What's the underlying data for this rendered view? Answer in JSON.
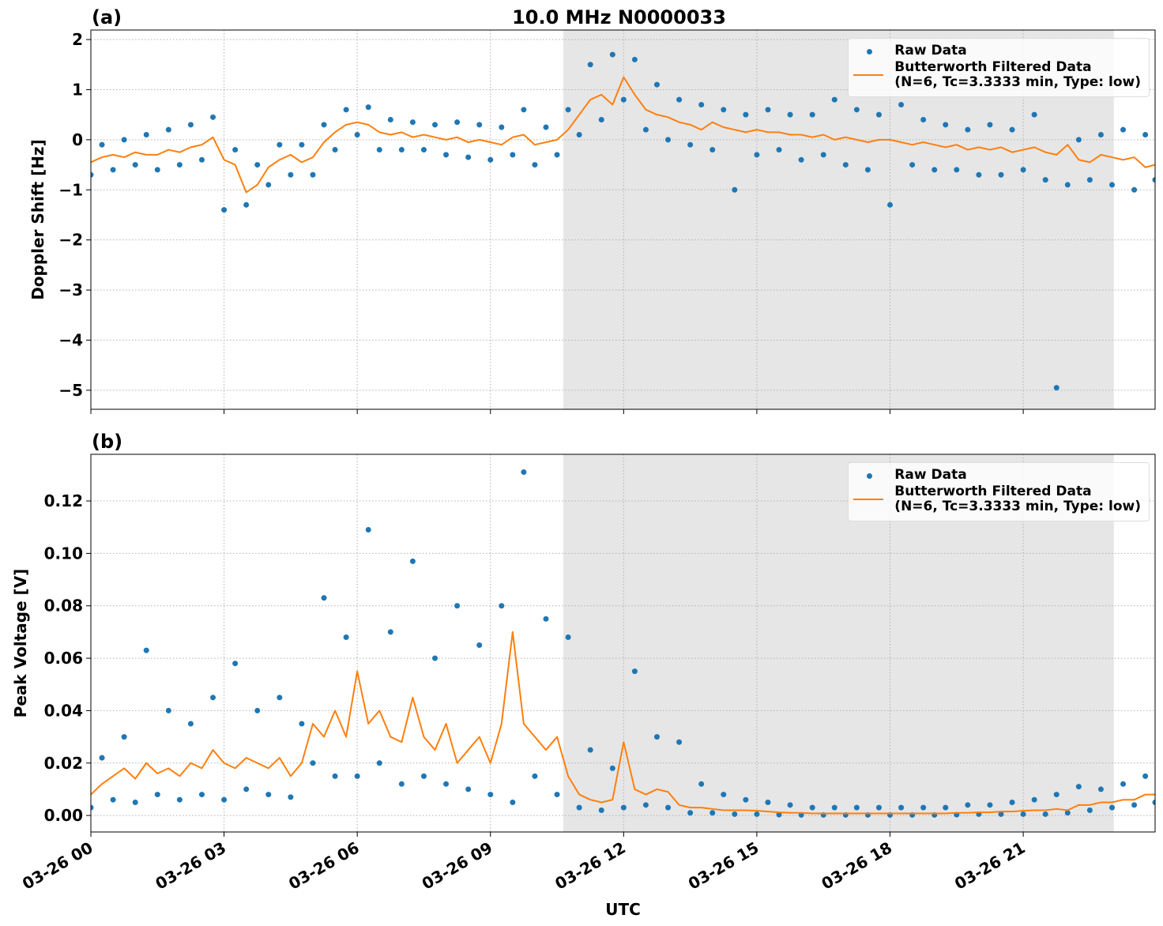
{
  "chart_data": [
    {
      "type": "line",
      "title": "10.0 MHz N0000033",
      "panel_label": "(a)",
      "y_label": "Doppler Shift [Hz]",
      "xlim": [
        0,
        23.97
      ],
      "xticks": [
        0,
        3,
        6,
        9,
        12,
        15,
        18,
        21
      ],
      "ylim": [
        -5.38,
        2.19
      ],
      "yticks": [
        {
          "value": -5,
          "label": "−5"
        },
        {
          "value": -4,
          "label": "−4"
        },
        {
          "value": -3,
          "label": "−3"
        },
        {
          "value": -2,
          "label": "−2"
        },
        {
          "value": -1,
          "label": "−1"
        },
        0,
        1,
        2
      ],
      "grid": true,
      "legend": "upper right",
      "shaded_xrange": [
        10.64,
        23.04
      ],
      "shade_color": "#e6e6e6",
      "x": [
        0,
        0.25,
        0.5,
        0.75,
        1,
        1.25,
        1.5,
        1.75,
        2,
        2.25,
        2.5,
        2.75,
        3,
        3.25,
        3.5,
        3.75,
        4,
        4.25,
        4.5,
        4.75,
        5,
        5.25,
        5.5,
        5.75,
        6,
        6.25,
        6.5,
        6.75,
        7,
        7.25,
        7.5,
        7.75,
        8,
        8.25,
        8.5,
        8.75,
        9,
        9.25,
        9.5,
        9.75,
        10,
        10.25,
        10.5,
        10.75,
        11,
        11.25,
        11.5,
        11.75,
        12,
        12.25,
        12.5,
        12.75,
        13,
        13.25,
        13.5,
        13.75,
        14,
        14.25,
        14.5,
        14.75,
        15,
        15.25,
        15.5,
        15.75,
        16,
        16.25,
        16.5,
        16.75,
        17,
        17.25,
        17.5,
        17.75,
        18,
        18.25,
        18.5,
        18.75,
        19,
        19.25,
        19.5,
        19.75,
        20,
        20.25,
        20.5,
        20.75,
        21,
        21.25,
        21.5,
        21.75,
        22,
        22.25,
        22.5,
        22.75,
        23,
        23.25,
        23.5,
        23.75,
        23.97
      ],
      "series": [
        {
          "name": "Raw Data",
          "type": "scatter",
          "color": "#1f77b4",
          "values": [
            -0.7,
            -0.1,
            -0.6,
            0.0,
            -0.5,
            0.1,
            -0.6,
            0.2,
            -0.5,
            0.3,
            -0.4,
            0.45,
            -1.4,
            -0.2,
            -1.3,
            -0.5,
            -0.9,
            -0.1,
            -0.7,
            -0.1,
            -0.7,
            0.3,
            -0.2,
            0.6,
            0.1,
            0.65,
            -0.2,
            0.4,
            -0.2,
            0.35,
            -0.2,
            0.3,
            -0.3,
            0.35,
            -0.35,
            0.3,
            -0.4,
            0.25,
            -0.3,
            0.6,
            -0.5,
            0.25,
            -0.3,
            0.6,
            0.1,
            1.5,
            0.4,
            1.7,
            0.8,
            1.6,
            0.2,
            1.1,
            0.0,
            0.8,
            -0.1,
            0.7,
            -0.2,
            0.6,
            -1.0,
            0.5,
            -0.3,
            0.6,
            -0.2,
            0.5,
            -0.4,
            0.5,
            -0.3,
            0.8,
            -0.5,
            0.6,
            -0.6,
            0.5,
            -1.3,
            0.7,
            -0.5,
            0.4,
            -0.6,
            0.3,
            -0.6,
            0.2,
            -0.7,
            0.3,
            -0.7,
            0.2,
            -0.6,
            0.5,
            -0.8,
            -4.95,
            -0.9,
            0.0,
            -0.8,
            0.1,
            -0.9,
            0.2,
            -1.0,
            0.1,
            -0.8
          ]
        },
        {
          "name": "Butterworth Filtered Data\n(N=6, Tc=3.3333 min, Type: low)",
          "type": "line",
          "color": "#ff7f0e",
          "values": [
            -0.45,
            -0.35,
            -0.3,
            -0.35,
            -0.25,
            -0.3,
            -0.3,
            -0.2,
            -0.25,
            -0.15,
            -0.1,
            0.05,
            -0.4,
            -0.5,
            -1.05,
            -0.9,
            -0.55,
            -0.4,
            -0.3,
            -0.45,
            -0.35,
            -0.05,
            0.15,
            0.3,
            0.35,
            0.3,
            0.15,
            0.1,
            0.15,
            0.05,
            0.1,
            0.05,
            0.0,
            0.05,
            -0.05,
            0.0,
            -0.05,
            -0.1,
            0.05,
            0.1,
            -0.1,
            -0.05,
            0.0,
            0.2,
            0.5,
            0.8,
            0.9,
            0.7,
            1.25,
            0.9,
            0.6,
            0.5,
            0.45,
            0.35,
            0.3,
            0.2,
            0.35,
            0.25,
            0.2,
            0.15,
            0.2,
            0.15,
            0.15,
            0.1,
            0.1,
            0.05,
            0.1,
            0.0,
            0.05,
            0.0,
            -0.05,
            0.0,
            0.0,
            -0.05,
            -0.1,
            -0.05,
            -0.1,
            -0.15,
            -0.1,
            -0.2,
            -0.15,
            -0.2,
            -0.15,
            -0.25,
            -0.2,
            -0.15,
            -0.25,
            -0.3,
            -0.1,
            -0.4,
            -0.45,
            -0.3,
            -0.35,
            -0.4,
            -0.35,
            -0.55,
            -0.5
          ]
        }
      ]
    },
    {
      "type": "line",
      "panel_label": "(b)",
      "y_label": "Peak Voltage [V]",
      "x_label": "UTC",
      "xlim": [
        0,
        23.97
      ],
      "xticks": [
        {
          "value": 0,
          "label": "03-26 00"
        },
        {
          "value": 3,
          "label": "03-26 03"
        },
        {
          "value": 6,
          "label": "03-26 06"
        },
        {
          "value": 9,
          "label": "03-26 09"
        },
        {
          "value": 12,
          "label": "03-26 12"
        },
        {
          "value": 15,
          "label": "03-26 15"
        },
        {
          "value": 18,
          "label": "03-26 18"
        },
        {
          "value": 21,
          "label": "03-26 21"
        }
      ],
      "ylim": [
        -0.0063,
        0.1378
      ],
      "yticks": [
        {
          "value": 0,
          "label": "0.00"
        },
        {
          "value": 0.02,
          "label": "0.02"
        },
        {
          "value": 0.04,
          "label": "0.04"
        },
        {
          "value": 0.06,
          "label": "0.06"
        },
        {
          "value": 0.08,
          "label": "0.08"
        },
        {
          "value": 0.1,
          "label": "0.10"
        },
        {
          "value": 0.12,
          "label": "0.12"
        }
      ],
      "grid": true,
      "legend": "upper right",
      "shaded_xrange": [
        10.64,
        23.04
      ],
      "shade_color": "#e6e6e6",
      "x": [
        0,
        0.25,
        0.5,
        0.75,
        1,
        1.25,
        1.5,
        1.75,
        2,
        2.25,
        2.5,
        2.75,
        3,
        3.25,
        3.5,
        3.75,
        4,
        4.25,
        4.5,
        4.75,
        5,
        5.25,
        5.5,
        5.75,
        6,
        6.25,
        6.5,
        6.75,
        7,
        7.25,
        7.5,
        7.75,
        8,
        8.25,
        8.5,
        8.75,
        9,
        9.25,
        9.5,
        9.75,
        10,
        10.25,
        10.5,
        10.75,
        11,
        11.25,
        11.5,
        11.75,
        12,
        12.25,
        12.5,
        12.75,
        13,
        13.25,
        13.5,
        13.75,
        14,
        14.25,
        14.5,
        14.75,
        15,
        15.25,
        15.5,
        15.75,
        16,
        16.25,
        16.5,
        16.75,
        17,
        17.25,
        17.5,
        17.75,
        18,
        18.25,
        18.5,
        18.75,
        19,
        19.25,
        19.5,
        19.75,
        20,
        20.25,
        20.5,
        20.75,
        21,
        21.25,
        21.5,
        21.75,
        22,
        22.25,
        22.5,
        22.75,
        23,
        23.25,
        23.5,
        23.75,
        23.97
      ],
      "series": [
        {
          "name": "Raw Data",
          "type": "scatter",
          "color": "#1f77b4",
          "values": [
            0.003,
            0.022,
            0.006,
            0.03,
            0.005,
            0.063,
            0.008,
            0.04,
            0.006,
            0.035,
            0.008,
            0.045,
            0.006,
            0.058,
            0.01,
            0.04,
            0.008,
            0.045,
            0.007,
            0.035,
            0.02,
            0.083,
            0.015,
            0.068,
            0.015,
            0.109,
            0.02,
            0.07,
            0.012,
            0.097,
            0.015,
            0.06,
            0.012,
            0.08,
            0.01,
            0.065,
            0.008,
            0.08,
            0.005,
            0.131,
            0.015,
            0.075,
            0.008,
            0.068,
            0.003,
            0.025,
            0.002,
            0.018,
            0.003,
            0.055,
            0.004,
            0.03,
            0.003,
            0.028,
            0.001,
            0.012,
            0.001,
            0.008,
            0.0005,
            0.006,
            0.0005,
            0.005,
            0.0003,
            0.004,
            0.0002,
            0.003,
            0.0002,
            0.003,
            0.0002,
            0.003,
            0.0002,
            0.003,
            0.0002,
            0.003,
            0.0002,
            0.003,
            0.0002,
            0.003,
            0.0003,
            0.004,
            0.0005,
            0.004,
            0.0005,
            0.005,
            0.0005,
            0.006,
            0.0005,
            0.008,
            0.001,
            0.011,
            0.002,
            0.01,
            0.003,
            0.012,
            0.004,
            0.015,
            0.005
          ]
        },
        {
          "name": "Butterworth Filtered Data\n(N=6, Tc=3.3333 min, Type: low)",
          "type": "line",
          "color": "#ff7f0e",
          "values": [
            0.008,
            0.012,
            0.015,
            0.018,
            0.014,
            0.02,
            0.016,
            0.018,
            0.015,
            0.02,
            0.018,
            0.025,
            0.02,
            0.018,
            0.022,
            0.02,
            0.018,
            0.022,
            0.015,
            0.02,
            0.035,
            0.03,
            0.04,
            0.03,
            0.055,
            0.035,
            0.04,
            0.03,
            0.028,
            0.045,
            0.03,
            0.025,
            0.035,
            0.02,
            0.025,
            0.03,
            0.02,
            0.035,
            0.07,
            0.035,
            0.03,
            0.025,
            0.03,
            0.015,
            0.008,
            0.006,
            0.005,
            0.006,
            0.028,
            0.01,
            0.008,
            0.01,
            0.009,
            0.004,
            0.003,
            0.003,
            0.0025,
            0.002,
            0.002,
            0.002,
            0.0018,
            0.0015,
            0.0012,
            0.001,
            0.001,
            0.0008,
            0.0008,
            0.0008,
            0.0008,
            0.0008,
            0.0008,
            0.0008,
            0.0008,
            0.0008,
            0.0008,
            0.0008,
            0.0008,
            0.0008,
            0.001,
            0.001,
            0.0012,
            0.0012,
            0.0015,
            0.0015,
            0.0018,
            0.002,
            0.002,
            0.0025,
            0.002,
            0.004,
            0.004,
            0.005,
            0.005,
            0.006,
            0.006,
            0.008,
            0.008
          ]
        }
      ]
    }
  ]
}
